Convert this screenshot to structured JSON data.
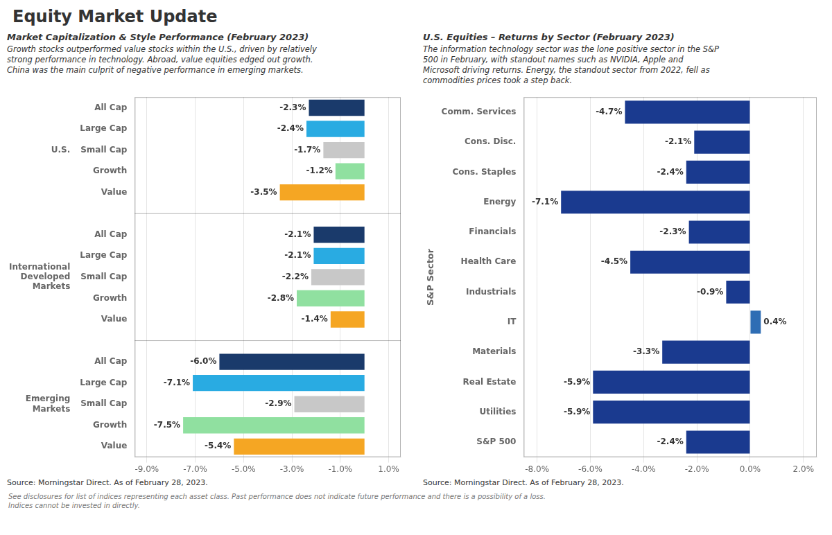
{
  "title": "Equity Market Update",
  "annotations": [
    "See disclosures for list of indices representing each asset class. Past performance does not indicate future performance and there is a possibility of a loss.\nIndices cannot be invested in directly."
  ],
  "chart_data": [
    {
      "type": "bar",
      "orientation": "horizontal",
      "subtitle": "Market Capitalization & Style Performance (February 2023)",
      "annotations": [
        "Growth stocks outperformed value stocks within the U.S., driven by relatively\nstrong performance in technology. Abroad, value equities edged out growth.\nChina was the main culprit of negative performance in emerging markets.",
        "Source: Morningstar Direct. As of February 28, 2023."
      ],
      "groups": [
        {
          "label": "U.S.",
          "categories": [
            "All Cap",
            "Large Cap",
            "Small Cap",
            "Growth",
            "Value"
          ],
          "values": [
            -2.3,
            -2.4,
            -1.7,
            -1.2,
            -3.5
          ],
          "value_labels": [
            "-2.3%",
            "-2.4%",
            "-1.7%",
            "-1.2%",
            "-3.5%"
          ],
          "colors": [
            "#1a3a6b",
            "#29abe2",
            "#c8c8c8",
            "#90e0a0",
            "#f5a623"
          ]
        },
        {
          "label": "International\nDeveloped\nMarkets",
          "categories": [
            "All Cap",
            "Large Cap",
            "Small Cap",
            "Growth",
            "Value"
          ],
          "values": [
            -2.1,
            -2.1,
            -2.2,
            -2.8,
            -1.4
          ],
          "value_labels": [
            "-2.1%",
            "-2.1%",
            "-2.2%",
            "-2.8%",
            "-1.4%"
          ],
          "colors": [
            "#1a3a6b",
            "#29abe2",
            "#c8c8c8",
            "#90e0a0",
            "#f5a623"
          ]
        },
        {
          "label": "Emerging\nMarkets",
          "categories": [
            "All Cap",
            "Large Cap",
            "Small Cap",
            "Growth",
            "Value"
          ],
          "values": [
            -6.0,
            -7.1,
            -2.9,
            -7.5,
            -5.4
          ],
          "value_labels": [
            "-6.0%",
            "-7.1%",
            "-2.9%",
            "-7.5%",
            "-5.4%"
          ],
          "colors": [
            "#1a3a6b",
            "#29abe2",
            "#c8c8c8",
            "#90e0a0",
            "#f5a623"
          ]
        }
      ],
      "xlim": [
        -9.5,
        1.5
      ],
      "xticks": [
        {
          "value": -9.0,
          "label": "-9.0%"
        },
        {
          "value": -7.0,
          "label": "-7.0%"
        },
        {
          "value": -5.0,
          "label": "-5.0%"
        },
        {
          "value": -3.0,
          "label": "-3.0%"
        },
        {
          "value": -1.0,
          "label": "-1.0%"
        },
        {
          "value": 1.0,
          "label": "1.0%"
        }
      ],
      "grid": true,
      "data_labels": true
    },
    {
      "type": "bar",
      "orientation": "horizontal",
      "subtitle": "U.S. Equities – Returns by Sector (February 2023)",
      "annotations": [
        "The information technology sector was the lone positive sector in the S&P\n500 in February, with standout names such as NVIDIA, Apple and\nMicrosoft driving returns. Energy, the standout sector from 2022, fell as\ncommodities prices took a step back.",
        "Source: Morningstar Direct. As of February 28, 2023."
      ],
      "ylabel": "S&P Sector",
      "categories": [
        "Comm. Services",
        "Cons. Disc.",
        "Cons. Staples",
        "Energy",
        "Financials",
        "Health Care",
        "Industrials",
        "IT",
        "Materials",
        "Real Estate",
        "Utilities",
        "S&P 500"
      ],
      "values": [
        -4.7,
        -2.1,
        -2.4,
        -7.1,
        -2.3,
        -4.5,
        -0.9,
        0.4,
        -3.3,
        -5.9,
        -5.9,
        -2.4
      ],
      "value_labels": [
        "-4.7%",
        "-2.1%",
        "-2.4%",
        "-7.1%",
        "-2.3%",
        "-4.5%",
        "-0.9%",
        "0.4%",
        "-3.3%",
        "-5.9%",
        "-5.9%",
        "-2.4%"
      ],
      "colors": [
        "#1a3a8f",
        "#1a3a8f",
        "#1a3a8f",
        "#1a3a8f",
        "#1a3a8f",
        "#1a3a8f",
        "#1a3a8f",
        "#2e6db4",
        "#1a3a8f",
        "#1a3a8f",
        "#1a3a8f",
        "#1a3a8f"
      ],
      "xlim": [
        -8.5,
        2.5
      ],
      "xticks": [
        {
          "value": -8.0,
          "label": "-8.0%"
        },
        {
          "value": -6.0,
          "label": "-6.0%"
        },
        {
          "value": -4.0,
          "label": "-4.0%"
        },
        {
          "value": -2.0,
          "label": "-2.0%"
        },
        {
          "value": 0.0,
          "label": "0.0%"
        },
        {
          "value": 2.0,
          "label": "2.0%"
        }
      ],
      "grid": true,
      "data_labels": true
    }
  ]
}
